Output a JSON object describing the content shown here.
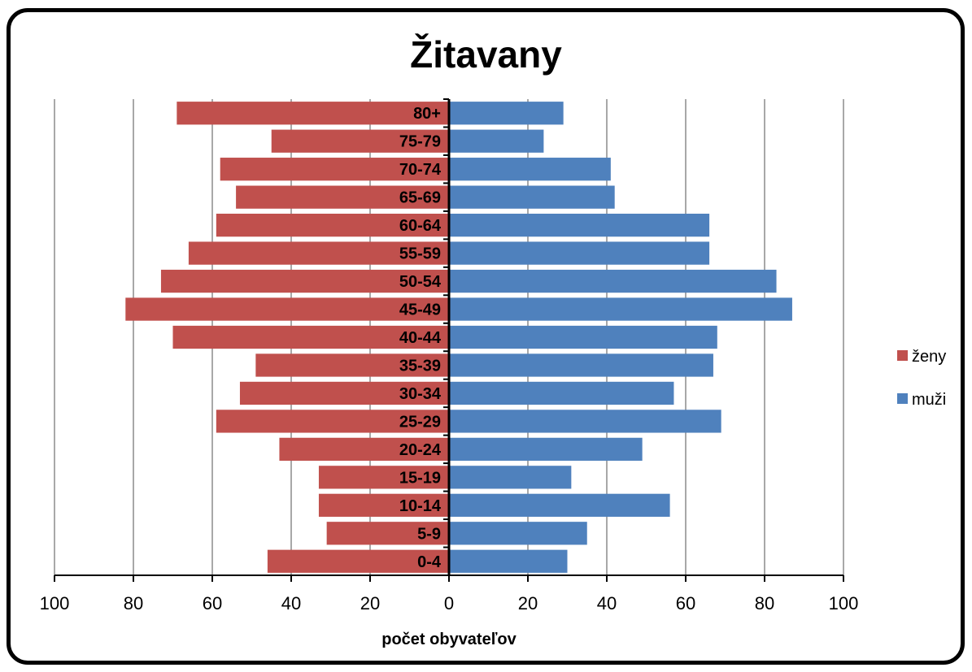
{
  "chart_data": {
    "type": "bar",
    "orientation": "horizontal-population-pyramid",
    "title": "Žitavany",
    "xlabel": "počet obyvateľov",
    "ylabel": "",
    "xlim": [
      -100,
      100
    ],
    "x_ticks": [
      -100,
      -80,
      -60,
      -40,
      -20,
      0,
      20,
      40,
      60,
      80,
      100
    ],
    "x_tick_labels": [
      "100",
      "80",
      "60",
      "40",
      "20",
      "0",
      "20",
      "40",
      "60",
      "80",
      "100"
    ],
    "grid": "vertical",
    "legend_position": "right",
    "categories": [
      "80+",
      "75-79",
      "70-74",
      "65-69",
      "60-64",
      "55-59",
      "50-54",
      "45-49",
      "40-44",
      "35-39",
      "30-34",
      "25-29",
      "20-24",
      "15-19",
      "10-14",
      "5-9",
      "0-4"
    ],
    "series": [
      {
        "name": "ženy",
        "color": "#C0504D",
        "side": "left",
        "values": [
          69,
          45,
          58,
          54,
          59,
          66,
          73,
          82,
          70,
          49,
          53,
          59,
          43,
          33,
          33,
          31,
          46
        ]
      },
      {
        "name": "muži",
        "color": "#4F81BD",
        "side": "right",
        "values": [
          29,
          24,
          41,
          42,
          66,
          66,
          83,
          87,
          68,
          67,
          57,
          69,
          49,
          31,
          56,
          35,
          30
        ]
      }
    ]
  }
}
